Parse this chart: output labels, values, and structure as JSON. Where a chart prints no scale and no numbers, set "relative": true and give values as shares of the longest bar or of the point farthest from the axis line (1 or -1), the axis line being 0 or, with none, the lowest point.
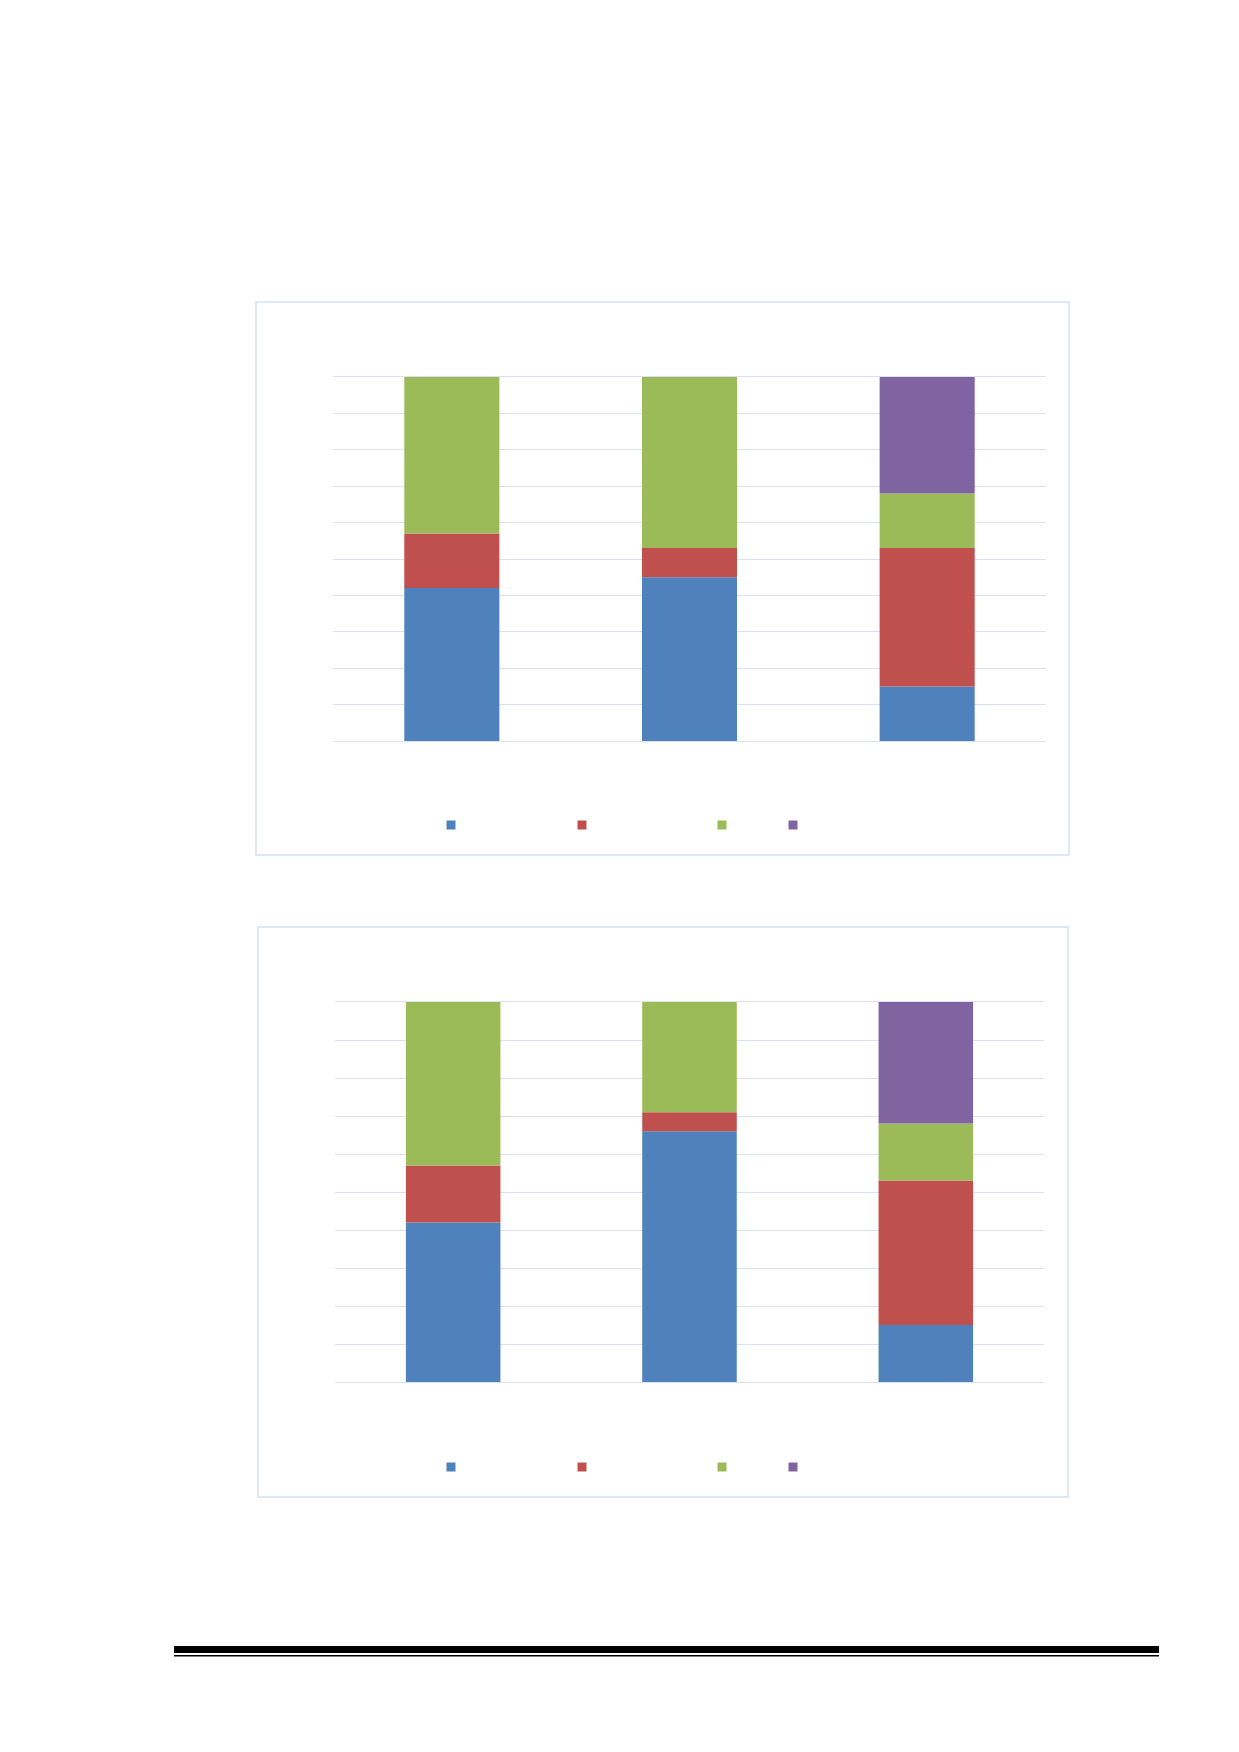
{
  "chart_data": [
    {
      "type": "bar",
      "stacked": true,
      "relative": true,
      "categories": [
        null,
        null,
        null
      ],
      "grid": "y",
      "series": [
        {
          "color": "#4f81bd",
          "values": [
            0.42,
            0.45,
            0.15
          ]
        },
        {
          "color": "#c0504d",
          "values": [
            0.15,
            0.08,
            0.38
          ]
        },
        {
          "color": "#9bbb59",
          "values": [
            0.43,
            0.47,
            0.15
          ]
        },
        {
          "color": "#8064a2",
          "values": [
            null,
            null,
            0.32
          ]
        }
      ]
    },
    {
      "type": "bar",
      "stacked": true,
      "relative": true,
      "categories": [
        null,
        null,
        null
      ],
      "grid": "y",
      "series": [
        {
          "color": "#4f81bd",
          "values": [
            0.42,
            0.66,
            0.15
          ]
        },
        {
          "color": "#c0504d",
          "values": [
            0.15,
            0.05,
            0.38
          ]
        },
        {
          "color": "#9bbb59",
          "values": [
            0.43,
            0.29,
            0.15
          ]
        },
        {
          "color": "#8064a2",
          "values": [
            null,
            null,
            0.32
          ]
        }
      ]
    }
  ]
}
